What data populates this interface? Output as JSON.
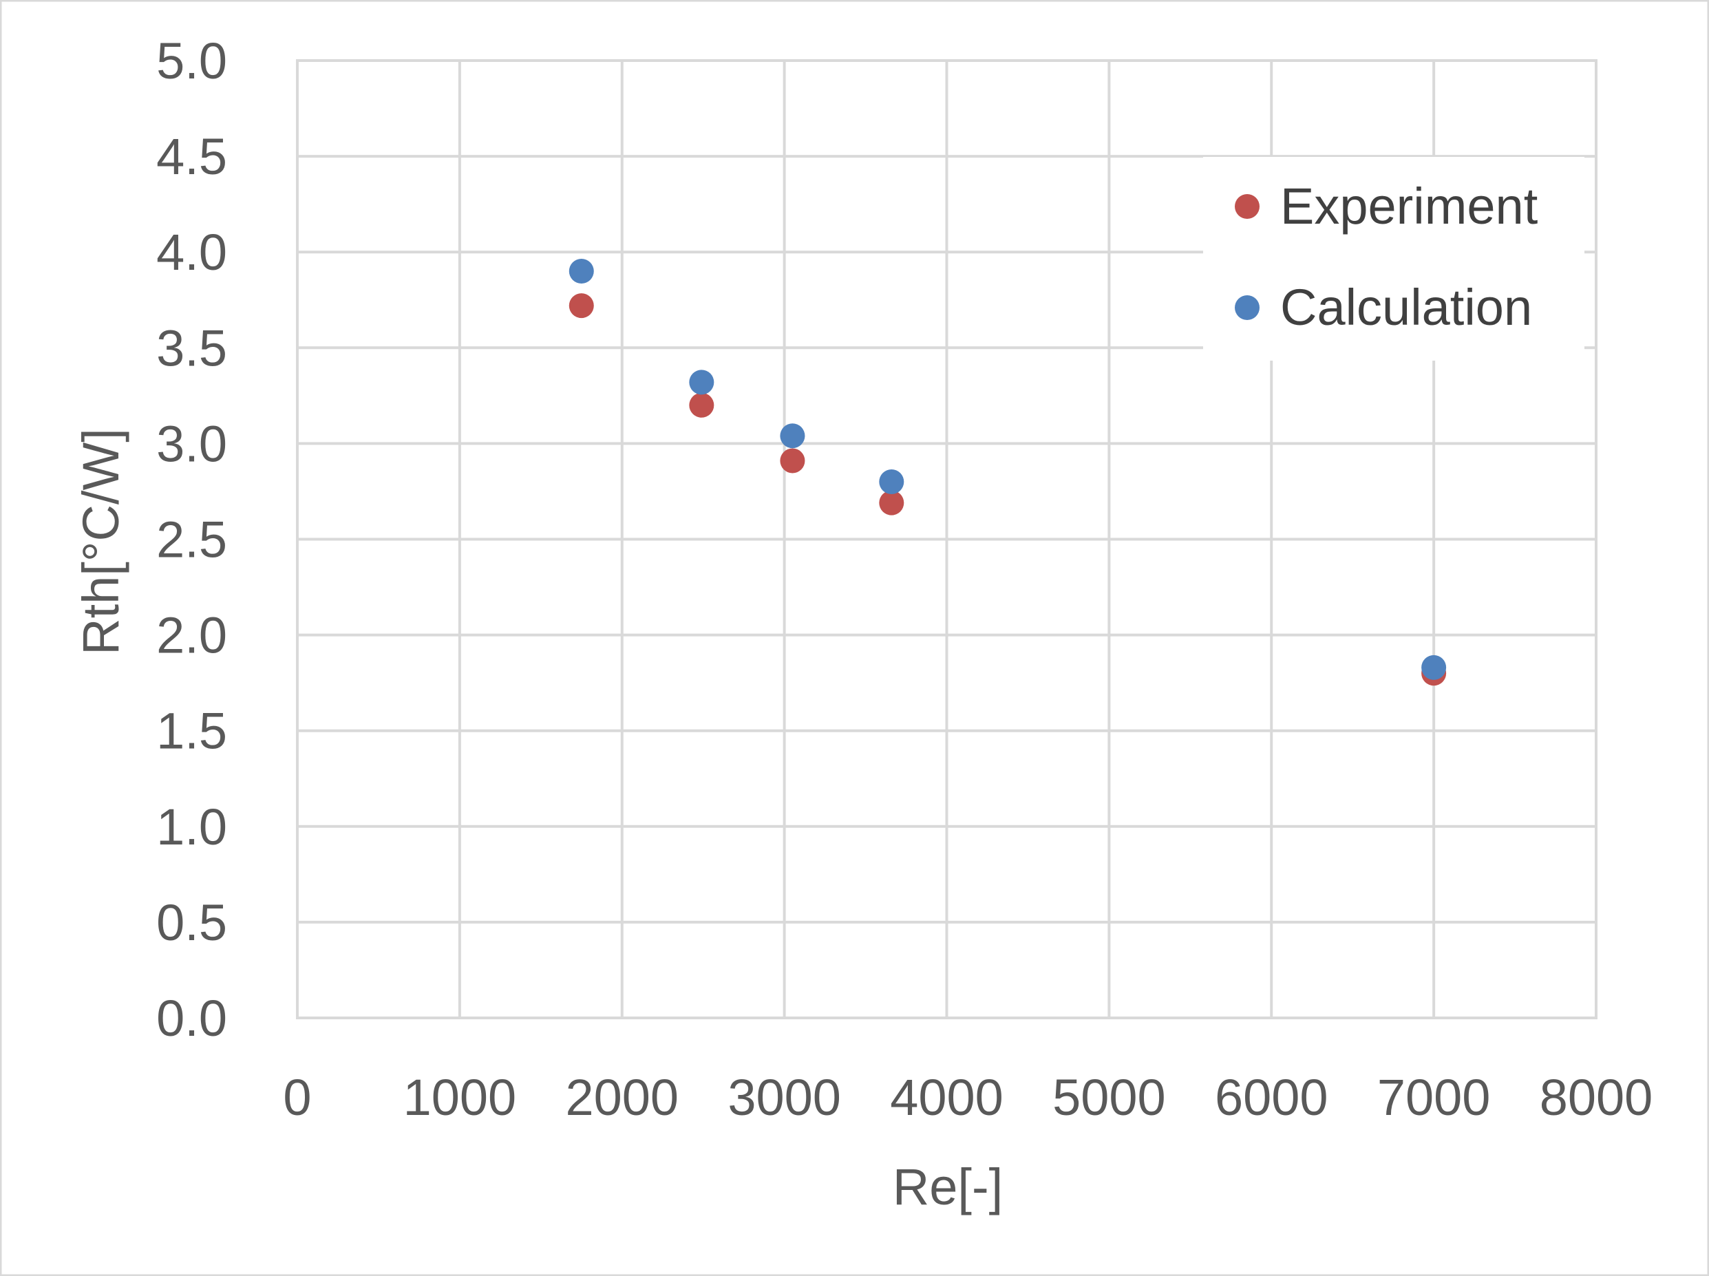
{
  "chart_data": {
    "type": "scatter",
    "xlabel": "Re[-]",
    "ylabel": "Rth[°C/W]",
    "xlim": [
      0,
      8000
    ],
    "ylim": [
      0.0,
      5.0
    ],
    "x_ticks": [
      "0",
      "1000",
      "2000",
      "3000",
      "4000",
      "5000",
      "6000",
      "7000",
      "8000"
    ],
    "y_ticks": [
      "0.0",
      "0.5",
      "1.0",
      "1.5",
      "2.0",
      "2.5",
      "3.0",
      "3.5",
      "4.0",
      "4.5",
      "5.0"
    ],
    "grid": true,
    "legend_position": "top-right",
    "series": [
      {
        "name": "Experiment",
        "color": "#c0504d",
        "points": [
          {
            "x": 1750,
            "y": 3.72
          },
          {
            "x": 2490,
            "y": 3.2
          },
          {
            "x": 3050,
            "y": 2.91
          },
          {
            "x": 3660,
            "y": 2.69
          },
          {
            "x": 7000,
            "y": 1.8
          }
        ]
      },
      {
        "name": "Calculation",
        "color": "#4f81bd",
        "points": [
          {
            "x": 1750,
            "y": 3.9
          },
          {
            "x": 2490,
            "y": 3.32
          },
          {
            "x": 3050,
            "y": 3.04
          },
          {
            "x": 3660,
            "y": 2.8
          },
          {
            "x": 7000,
            "y": 1.83
          }
        ]
      }
    ]
  }
}
